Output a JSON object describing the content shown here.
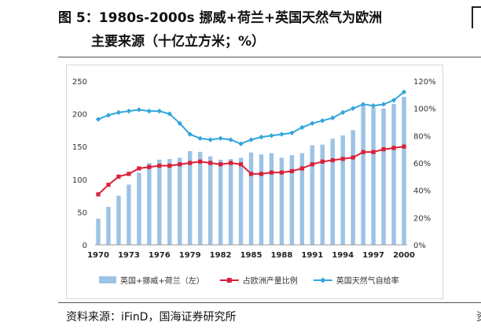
{
  "title": {
    "line1": "图 5：1980s-2000s 挪威+荷兰+英国天然气为欧洲",
    "line2": "主要来源（十亿立方米；%）"
  },
  "source": "资料来源：iFinD，国海证券研究所",
  "chart_data": {
    "type": "bar",
    "x": [
      1970,
      1971,
      1972,
      1973,
      1974,
      1975,
      1976,
      1977,
      1978,
      1979,
      1980,
      1981,
      1982,
      1983,
      1984,
      1985,
      1986,
      1987,
      1988,
      1989,
      1990,
      1991,
      1992,
      1993,
      1994,
      1995,
      1996,
      1997,
      1998,
      1999,
      2000
    ],
    "x_tick_labels": [
      "1970",
      "1973",
      "1976",
      "1979",
      "1982",
      "1985",
      "1988",
      "1991",
      "1994",
      "1997",
      "2000"
    ],
    "y_left": {
      "ticks": [
        "0",
        "50",
        "100",
        "150",
        "200",
        "250"
      ],
      "range": [
        0,
        250
      ]
    },
    "y_right": {
      "ticks": [
        "0%",
        "20%",
        "40%",
        "60%",
        "80%",
        "100%",
        "120%"
      ],
      "range": [
        0,
        120
      ]
    },
    "series": [
      {
        "name": "英国+挪威+荷兰（左）",
        "kind": "bar",
        "axis": "left",
        "color": "#9dc3e6",
        "values": [
          40,
          58,
          75,
          92,
          110,
          125,
          130,
          131,
          133,
          143,
          142,
          135,
          130,
          131,
          133,
          141,
          138,
          140,
          133,
          137,
          140,
          152,
          153,
          162,
          167,
          175,
          212,
          210,
          208,
          215,
          226
        ]
      },
      {
        "name": "占欧洲产量比例",
        "kind": "line",
        "axis": "right",
        "color": "#d9203a",
        "marker": "square",
        "values": [
          37,
          44,
          50,
          52,
          56,
          57,
          58,
          58,
          59,
          60,
          61,
          60,
          59,
          60,
          59,
          52,
          52,
          53,
          53,
          54,
          56,
          59,
          61,
          62,
          63,
          64,
          68,
          68,
          70,
          71,
          72
        ]
      },
      {
        "name": "英国天然气自给率",
        "kind": "line",
        "axis": "right",
        "color": "#33a6dd",
        "marker": "diamond",
        "values": [
          92,
          95,
          97,
          98,
          99,
          98,
          98,
          96,
          89,
          81,
          78,
          77,
          78,
          77,
          74,
          77,
          79,
          80,
          81,
          82,
          86,
          89,
          91,
          93,
          97,
          100,
          103,
          102,
          103,
          106,
          112
        ]
      }
    ],
    "legend_position": "bottom",
    "grid": false
  }
}
